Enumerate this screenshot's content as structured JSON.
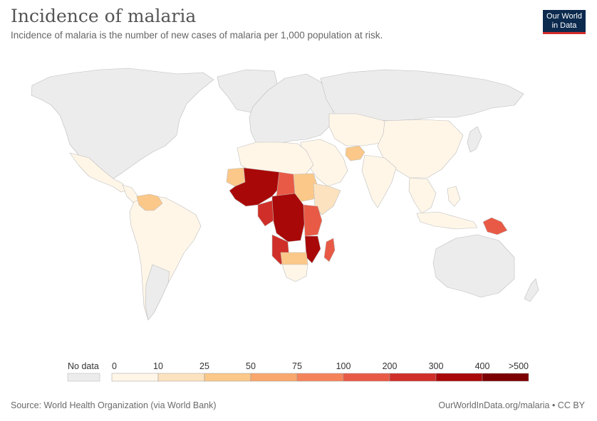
{
  "header": {
    "title": "Incidence of malaria",
    "subtitle": "Incidence of malaria is the number of new cases of malaria per 1,000 population at risk."
  },
  "logo": {
    "line1": "Our World",
    "line2": "in Data"
  },
  "legend": {
    "no_data_label": "No data",
    "no_data_color": "#ececec",
    "tick_labels": [
      "0",
      "10",
      "25",
      "50",
      "75",
      "100",
      "200",
      "300",
      "400",
      ">500"
    ],
    "bin_colors": [
      "#fff6e8",
      "#fde2bf",
      "#fbc889",
      "#f9a76c",
      "#f5835a",
      "#e85a45",
      "#cf2f28",
      "#a90808",
      "#7d0000"
    ]
  },
  "map": {
    "ocean_color": "#ffffff",
    "land_no_data": "#ececec",
    "border_color": "#bdbdbd"
  },
  "footer": {
    "source": "Source: World Health Organization (via World Bank)",
    "license": "OurWorldInData.org/malaria • CC BY"
  }
}
